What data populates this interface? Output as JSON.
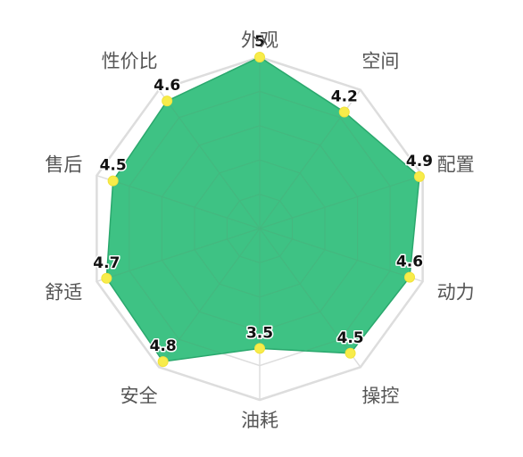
{
  "chart_data": {
    "type": "radar",
    "categories": [
      "外观",
      "空间",
      "配置",
      "动力",
      "操控",
      "油耗",
      "安全",
      "舒适",
      "售后",
      "性价比"
    ],
    "series": [
      {
        "values": [
          5,
          4.2,
          4.9,
          4.6,
          4.5,
          3.5,
          4.8,
          4.7,
          4.5,
          4.6
        ]
      }
    ],
    "value_labels": [
      "5",
      "4.2",
      "4.9",
      "4.6",
      "4.5",
      "3.5",
      "4.8",
      "4.7",
      "4.5",
      "4.6"
    ],
    "rlim": [
      0,
      5
    ],
    "grid": true,
    "colors": {
      "fill": "#2ebd7a",
      "stroke": "#2aa86d",
      "marker": "#f7ec4a",
      "grid": "#dddddd",
      "inner_grid": "#46b77f"
    }
  }
}
